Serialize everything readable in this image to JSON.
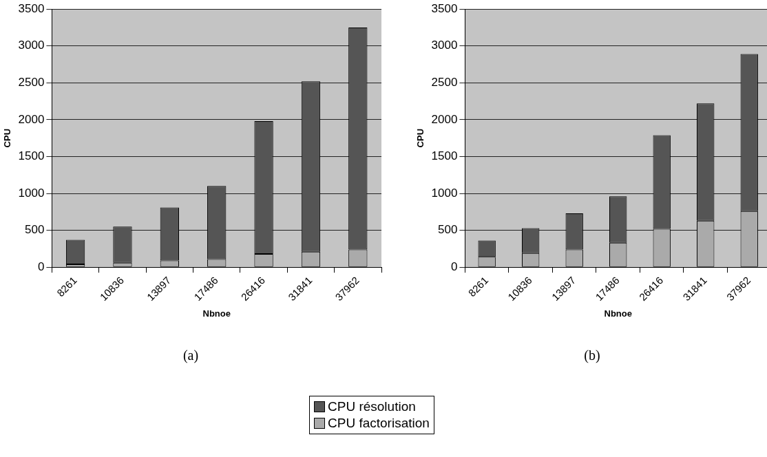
{
  "chart_data": [
    {
      "type": "bar",
      "title": "(a)",
      "xlabel": "Nbnoe",
      "ylabel": "CPU",
      "categories": [
        "8261",
        "10836",
        "13897",
        "17486",
        "26416",
        "31841",
        "37962"
      ],
      "stacked": true,
      "grid": "y",
      "legend": "bottom",
      "ylim": [
        0,
        3500
      ],
      "yticks": [
        0,
        500,
        1000,
        1500,
        2000,
        2500,
        3000,
        3500
      ],
      "series": [
        {
          "name": "CPU factorisation",
          "color": "#aaaaaa",
          "values": [
            40,
            60,
            90,
            110,
            180,
            210,
            240
          ]
        },
        {
          "name": "CPU résolution",
          "color": "#555555",
          "values": [
            330,
            490,
            720,
            990,
            1800,
            2310,
            3010
          ]
        }
      ]
    },
    {
      "type": "bar",
      "title": "(b)",
      "xlabel": "Nbnoe",
      "ylabel": "CPU",
      "categories": [
        "8261",
        "10836",
        "13897",
        "17486",
        "26416",
        "31841",
        "37962"
      ],
      "stacked": true,
      "grid": "y",
      "ylim": [
        0,
        3500
      ],
      "yticks": [
        0,
        500,
        1000,
        1500,
        2000,
        2500,
        3000,
        3500
      ],
      "series": [
        {
          "color": "#aaaaaa",
          "values": [
            140,
            190,
            240,
            330,
            520,
            630,
            760
          ]
        },
        {
          "color": "#555555",
          "values": [
            220,
            340,
            490,
            630,
            1270,
            1590,
            2130
          ]
        }
      ]
    }
  ]
}
